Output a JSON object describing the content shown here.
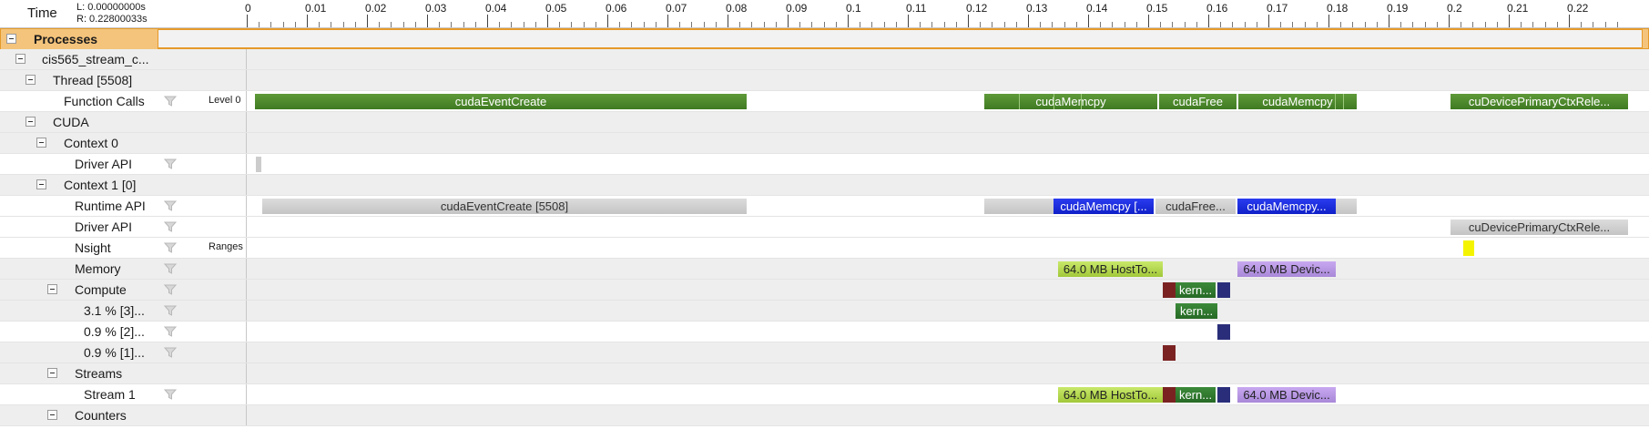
{
  "header": {
    "time_label": "Time",
    "range_left": "L: 0.00000000s",
    "range_right": "R: 0.22800033s",
    "ticks": [
      "0",
      "0.01",
      "0.02",
      "0.03",
      "0.04",
      "0.05",
      "0.06",
      "0.07",
      "0.08",
      "0.09",
      "0.1",
      "0.11",
      "0.12",
      "0.13",
      "0.14",
      "0.15",
      "0.16",
      "0.17",
      "0.18",
      "0.19",
      "0.2",
      "0.21",
      "0.22"
    ]
  },
  "rows": {
    "processes": "Processes",
    "process_name": "cis565_stream_c...",
    "thread": "Thread [5508]",
    "function_calls": "Function Calls",
    "level": "Level 0",
    "cuda": "CUDA",
    "context0": "Context 0",
    "driver_api_0": "Driver API",
    "context1": "Context 1 [0]",
    "runtime_api": "Runtime API",
    "driver_api_1": "Driver API",
    "nsight": "Nsight",
    "ranges": "Ranges",
    "memory": "Memory",
    "compute": "Compute",
    "compute_3": "3.1 % [3]...",
    "compute_2": "0.9 % [2]...",
    "compute_1": "0.9 % [1]...",
    "streams": "Streams",
    "stream1": "Stream 1",
    "counters": "Counters"
  },
  "bars": {
    "fc_event_create": "cudaEventCreate",
    "fc_memcpy_1": "cudaMemcpy",
    "fc_free": "cudaFree",
    "fc_memcpy_2": "cudaMemcpy",
    "fc_primary_ctx": "cuDevicePrimaryCtxRele...",
    "rt_event_create": "cudaEventCreate [5508]",
    "rt_memcpy_1": "cudaMemcpy [...",
    "rt_free": "cudaFree...",
    "rt_memcpy_2": "cudaMemcpy...",
    "drv_primary_ctx": "cuDevicePrimaryCtxRele...",
    "mem_htod": "64.0 MB HostTo...",
    "mem_dtoh": "64.0 MB Devic...",
    "kernel_short": "kern...",
    "kernel_short_2": "kern...",
    "stream_htod": "64.0 MB HostTo...",
    "stream_kernel": "kern...",
    "stream_dtoh": "64.0 MB Devic..."
  },
  "colors": {
    "api_green": "#4f8a2e",
    "runtime_gray": "#d0d0d0",
    "memcpy_blue": "#1a2ce0",
    "htod_lime": "#b4d850",
    "dtoh_lilac": "#b898e4",
    "kernel_green": "#2f7a2e",
    "kernel_red": "#7a2222",
    "kernel_navy": "#2a2e7a",
    "nsight_yellow": "#f4f400",
    "processes_orange": "#f4c47c"
  }
}
